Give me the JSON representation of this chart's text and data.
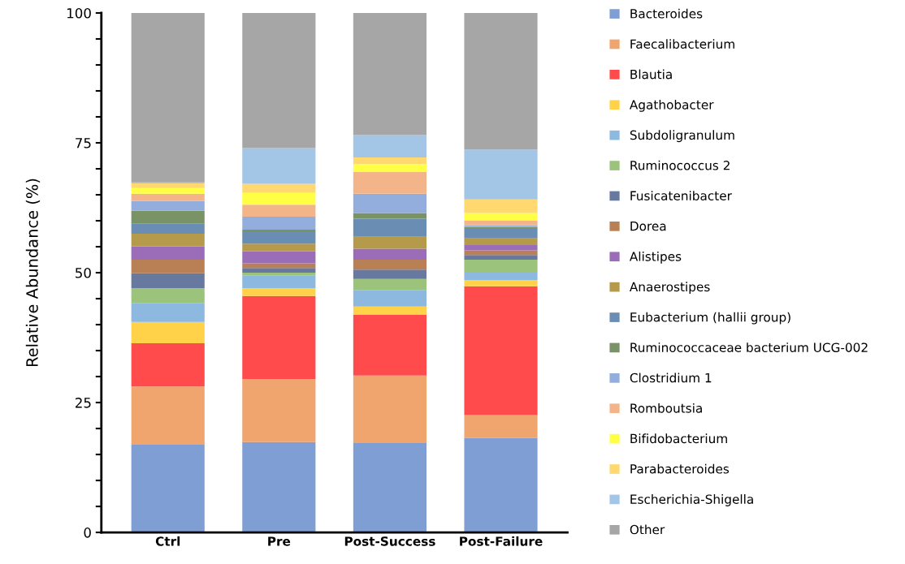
{
  "chart_data": {
    "type": "bar",
    "stacked": true,
    "ylabel": "Relative Abundance (%)",
    "categories": [
      "Ctrl",
      "Pre",
      "Post-Success",
      "Post-Failure"
    ],
    "ylim": [
      0,
      100
    ],
    "yticks": [
      0,
      {
        "value": 5,
        "label": null
      },
      {
        "value": 10,
        "label": null
      },
      {
        "value": 15,
        "label": null
      },
      {
        "value": 20,
        "label": null
      },
      25,
      {
        "value": 30,
        "label": null
      },
      {
        "value": 35,
        "label": null
      },
      {
        "value": 40,
        "label": null
      },
      {
        "value": 45,
        "label": null
      },
      50,
      {
        "value": 55,
        "label": null
      },
      {
        "value": 60,
        "label": null
      },
      {
        "value": 65,
        "label": null
      },
      {
        "value": 70,
        "label": null
      },
      75,
      {
        "value": 80,
        "label": null
      },
      {
        "value": 85,
        "label": null
      },
      {
        "value": 90,
        "label": null
      },
      {
        "value": 95,
        "label": null
      },
      100
    ],
    "grid": false,
    "legend": "right",
    "series": [
      {
        "name": "Bacteroides",
        "color": "#7f9ed4",
        "values": [
          16.9,
          17.4,
          17.3,
          18.2
        ]
      },
      {
        "name": "Faecalibacterium",
        "color": "#f0a46e",
        "values": [
          11.2,
          12.1,
          12.9,
          4.4
        ]
      },
      {
        "name": "Blautia",
        "color": "#ff4b4b",
        "values": [
          8.3,
          16.0,
          11.7,
          24.8
        ]
      },
      {
        "name": "Agathobacter",
        "color": "#ffd24a",
        "values": [
          4.1,
          1.5,
          1.6,
          1.2
        ]
      },
      {
        "name": "Subdoligranulum",
        "color": "#8db8e0",
        "values": [
          3.7,
          2.4,
          3.2,
          1.4
        ]
      },
      {
        "name": "Ruminococcus 2",
        "color": "#9bc37b",
        "values": [
          2.8,
          0.6,
          2.1,
          2.5
        ]
      },
      {
        "name": "Fusicatenibacter",
        "color": "#6879a0",
        "values": [
          2.9,
          0.9,
          1.8,
          0.9
        ]
      },
      {
        "name": "Dorea",
        "color": "#b97f55",
        "values": [
          2.6,
          0.9,
          1.9,
          0.9
        ]
      },
      {
        "name": "Alistipes",
        "color": "#9b6db8",
        "values": [
          2.6,
          2.3,
          2.1,
          1.0
        ]
      },
      {
        "name": "Anaerostipes",
        "color": "#b59a4b",
        "values": [
          2.4,
          1.5,
          2.3,
          1.3
        ]
      },
      {
        "name": "Eubacterium (hallii group)",
        "color": "#6a8db3",
        "values": [
          2.0,
          2.2,
          3.5,
          2.0
        ]
      },
      {
        "name": "Ruminococcaceae bacterium UCG-002",
        "color": "#799366",
        "values": [
          2.4,
          0.5,
          1.1,
          0.2
        ]
      },
      {
        "name": "Clostridium 1",
        "color": "#93aedc",
        "values": [
          1.9,
          2.5,
          3.7,
          0.3
        ]
      },
      {
        "name": "Romboutsia",
        "color": "#f3b48a",
        "values": [
          1.4,
          2.3,
          4.2,
          1.0
        ]
      },
      {
        "name": "Bifidobacterium",
        "color": "#ffff44",
        "values": [
          1.1,
          2.3,
          1.5,
          1.4
        ]
      },
      {
        "name": "Parabacteroides",
        "color": "#ffd870",
        "values": [
          0.9,
          1.7,
          1.3,
          2.6
        ]
      },
      {
        "name": "Escherichia-Shigella",
        "color": "#a3c5e6",
        "values": [
          0.2,
          6.9,
          4.3,
          9.6
        ]
      },
      {
        "name": "Other",
        "color": "#a6a6a6",
        "values": [
          32.6,
          26.0,
          23.5,
          26.3
        ]
      }
    ]
  }
}
